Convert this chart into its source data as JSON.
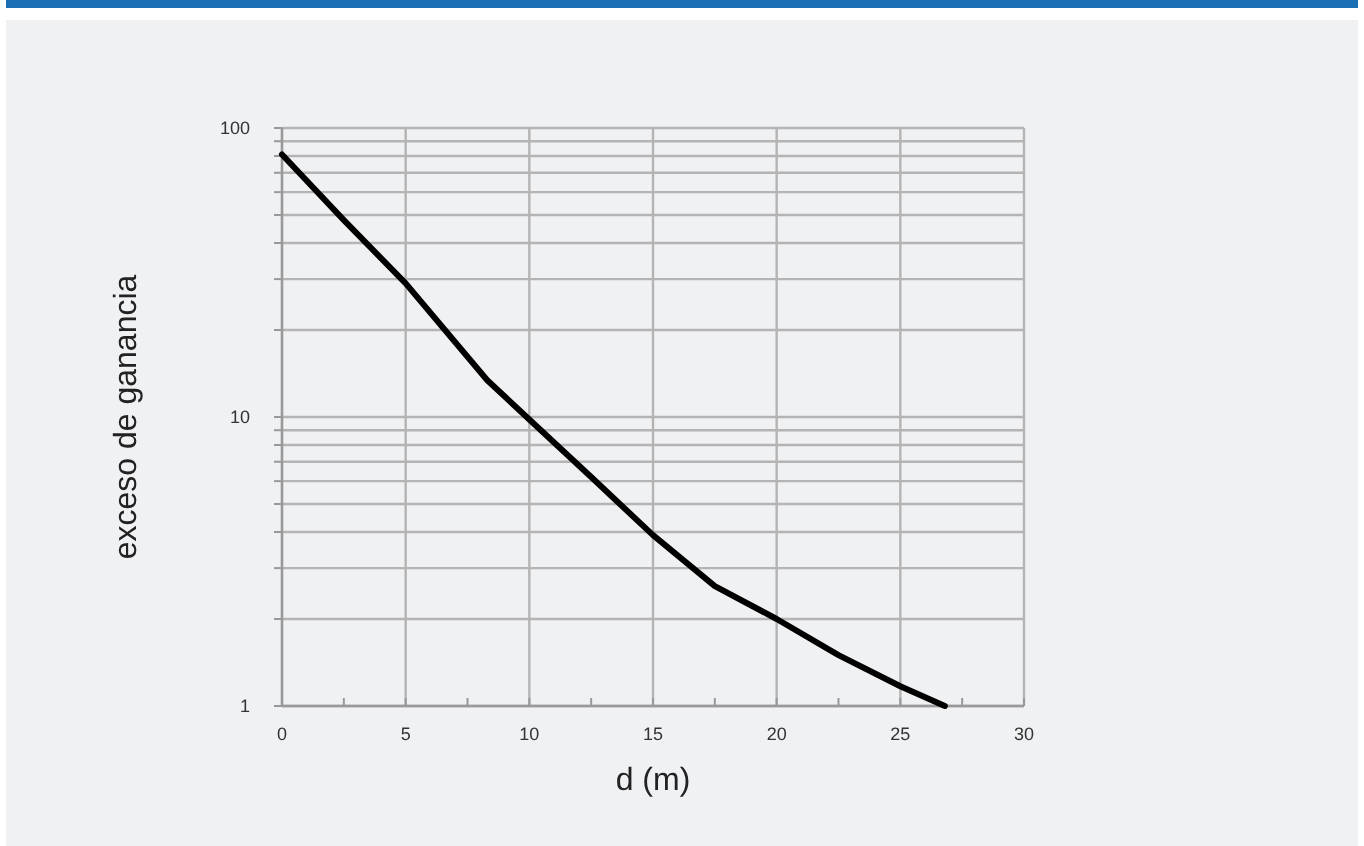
{
  "chart_data": {
    "type": "line",
    "xlabel": "d (m)",
    "ylabel": "exceso de ganancia",
    "log": "y",
    "grid": true,
    "marker": "none",
    "line_style": "solid",
    "xlim": [
      0,
      30
    ],
    "xticks": [
      0,
      {
        "value": 2.5,
        "label": null
      },
      5,
      {
        "value": 7.5,
        "label": null
      },
      10,
      {
        "value": 12.5,
        "label": null
      },
      15,
      {
        "value": 17.5,
        "label": null
      },
      20,
      {
        "value": 22.5,
        "label": null
      },
      25,
      {
        "value": 27.5,
        "label": null
      },
      30
    ],
    "ylim": [
      1,
      100
    ],
    "yticks": [
      1,
      {
        "value": 2,
        "label": null
      },
      {
        "value": 3,
        "label": null
      },
      {
        "value": 4,
        "label": null
      },
      {
        "value": 5,
        "label": null
      },
      {
        "value": 6,
        "label": null
      },
      {
        "value": 7,
        "label": null
      },
      {
        "value": 8,
        "label": null
      },
      {
        "value": 9,
        "label": null
      },
      10,
      {
        "value": 20,
        "label": null
      },
      {
        "value": 30,
        "label": null
      },
      {
        "value": 40,
        "label": null
      },
      {
        "value": 50,
        "label": null
      },
      {
        "value": 60,
        "label": null
      },
      {
        "value": 70,
        "label": null
      },
      {
        "value": 80,
        "label": null
      },
      {
        "value": 90,
        "label": null
      },
      100
    ],
    "series": [
      {
        "color": "#000000",
        "x": [
          0,
          2.5,
          5,
          8.3,
          10,
          12.5,
          15,
          17.5,
          20,
          22.5,
          25,
          26.8
        ],
        "values": [
          81,
          48,
          29,
          13.4,
          9.8,
          6.2,
          3.9,
          2.6,
          2.0,
          1.5,
          1.17,
          1.0
        ]
      }
    ]
  }
}
